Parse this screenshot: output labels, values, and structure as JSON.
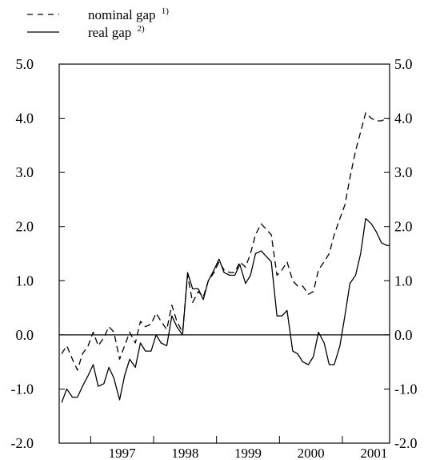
{
  "chart_data": {
    "type": "line",
    "title": "",
    "xlabel": "",
    "ylabel": "",
    "ylim": [
      -2.0,
      5.0
    ],
    "xlim": [
      1996.5,
      2001.75
    ],
    "y_ticks": [
      5.0,
      4.0,
      3.0,
      2.0,
      1.0,
      0.0,
      -1.0,
      -2.0
    ],
    "y_tick_labels": [
      "5.0",
      "4.0",
      "3.0",
      "2.0",
      "1.0",
      "0.0",
      "-1.0",
      "-2.0"
    ],
    "x_ticks": [
      1997,
      1998,
      1999,
      2000,
      2001
    ],
    "x_tick_labels": [
      "1997",
      "1998",
      "1999",
      "2000",
      "2001"
    ],
    "zero_line": true,
    "grid": false,
    "legend_position": "top-left",
    "series": [
      {
        "name": "nominal gap",
        "legend_sup": "1)",
        "style": "dashed",
        "color": "#000000",
        "x": [
          1996.54,
          1996.62,
          1996.71,
          1996.79,
          1996.87,
          1996.96,
          1997.04,
          1997.12,
          1997.21,
          1997.29,
          1997.37,
          1997.46,
          1997.54,
          1997.62,
          1997.71,
          1997.79,
          1997.87,
          1997.96,
          1998.04,
          1998.12,
          1998.21,
          1998.29,
          1998.37,
          1998.46,
          1998.54,
          1998.62,
          1998.71,
          1998.79,
          1998.87,
          1998.96,
          1999.04,
          1999.12,
          1999.21,
          1999.29,
          1999.37,
          1999.46,
          1999.54,
          1999.62,
          1999.71,
          1999.79,
          1999.87,
          1999.96,
          2000.04,
          2000.12,
          2000.21,
          2000.29,
          2000.37,
          2000.46,
          2000.54,
          2000.62,
          2000.71,
          2000.79,
          2000.87,
          2000.96,
          2001.04,
          2001.12,
          2001.21,
          2001.29,
          2001.37,
          2001.46,
          2001.54,
          2001.62,
          2001.71,
          2001.75
        ],
        "values": [
          -0.35,
          -0.2,
          -0.45,
          -0.65,
          -0.35,
          -0.2,
          0.05,
          -0.2,
          -0.05,
          0.15,
          0.05,
          -0.45,
          -0.2,
          0.05,
          -0.15,
          0.25,
          0.15,
          0.2,
          0.4,
          0.25,
          0.1,
          0.55,
          0.25,
          0.05,
          1.1,
          0.6,
          0.8,
          0.7,
          1.0,
          1.15,
          1.35,
          1.2,
          1.15,
          1.15,
          1.35,
          1.25,
          1.5,
          1.85,
          2.05,
          1.95,
          1.85,
          1.1,
          1.2,
          1.35,
          1.0,
          0.9,
          0.9,
          0.75,
          0.8,
          1.2,
          1.35,
          1.5,
          1.85,
          2.15,
          2.4,
          2.9,
          3.4,
          3.75,
          4.1,
          4.0,
          3.95,
          3.95,
          4.0,
          4.0
        ]
      },
      {
        "name": "real gap",
        "legend_sup": "2)",
        "style": "solid",
        "color": "#000000",
        "x": [
          1996.54,
          1996.62,
          1996.71,
          1996.79,
          1996.87,
          1996.96,
          1997.04,
          1997.12,
          1997.21,
          1997.29,
          1997.37,
          1997.46,
          1997.54,
          1997.62,
          1997.71,
          1997.79,
          1997.87,
          1997.96,
          1998.04,
          1998.12,
          1998.21,
          1998.29,
          1998.37,
          1998.46,
          1998.54,
          1998.62,
          1998.71,
          1998.79,
          1998.87,
          1998.96,
          1999.04,
          1999.12,
          1999.21,
          1999.29,
          1999.37,
          1999.46,
          1999.54,
          1999.62,
          1999.71,
          1999.79,
          1999.87,
          1999.96,
          2000.04,
          2000.12,
          2000.21,
          2000.29,
          2000.37,
          2000.46,
          2000.54,
          2000.62,
          2000.71,
          2000.79,
          2000.87,
          2000.96,
          2001.04,
          2001.12,
          2001.21,
          2001.29,
          2001.37,
          2001.46,
          2001.54,
          2001.62,
          2001.71,
          2001.75
        ],
        "values": [
          -1.25,
          -1.0,
          -1.15,
          -1.15,
          -0.95,
          -0.75,
          -0.55,
          -0.95,
          -0.9,
          -0.6,
          -0.8,
          -1.2,
          -0.75,
          -0.45,
          -0.6,
          -0.15,
          -0.3,
          -0.3,
          0.0,
          -0.15,
          -0.2,
          0.35,
          0.15,
          0.0,
          1.15,
          0.85,
          0.85,
          0.65,
          1.0,
          1.2,
          1.4,
          1.15,
          1.1,
          1.1,
          1.3,
          0.95,
          1.1,
          1.5,
          1.55,
          1.45,
          1.35,
          0.35,
          0.35,
          0.45,
          -0.3,
          -0.35,
          -0.5,
          -0.55,
          -0.4,
          0.05,
          -0.15,
          -0.55,
          -0.55,
          -0.2,
          0.35,
          0.95,
          1.1,
          1.5,
          2.15,
          2.05,
          1.9,
          1.7,
          1.65,
          1.65
        ]
      }
    ]
  }
}
